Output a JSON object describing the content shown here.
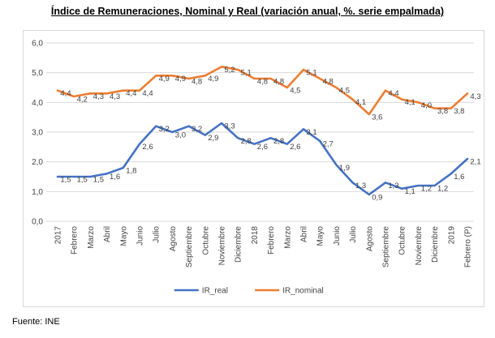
{
  "title": "Índice de Remuneraciones, Nominal y Real (variación anual, %. serie empalmada)",
  "source": "Fuente: INE",
  "colors": {
    "grid": "#D9D9D9",
    "border": "#D8D8D8",
    "axis_text": "#444444",
    "label_text": "#404040",
    "ir_real": "#4472C4",
    "ir_nominal": "#ED7D31"
  },
  "chart_data": {
    "type": "line",
    "title": "Índice de Remuneraciones, Nominal y Real (variación anual, %. serie empalmada)",
    "categories": [
      "2017",
      "Febrero",
      "Marzo",
      "Abril",
      "Mayo",
      "Junio",
      "Julio",
      "Agosto",
      "Septiembre",
      "Octubre",
      "Noviembre",
      "Diciembre",
      "2018",
      "Febrero",
      "Marzo",
      "Abril",
      "Mayo",
      "Junio",
      "Julio",
      "Agosto",
      "Septiembre",
      "Octubre",
      "Noviembre",
      "Diciembre",
      "2019",
      "Febrero (P)"
    ],
    "series": [
      {
        "name": "IR_real",
        "color": "#4472C4",
        "values": [
          1.5,
          1.5,
          1.5,
          1.6,
          1.8,
          2.6,
          3.2,
          3.0,
          3.2,
          2.9,
          3.3,
          2.8,
          2.6,
          2.8,
          2.6,
          3.1,
          2.7,
          1.9,
          1.3,
          0.9,
          1.3,
          1.1,
          1.2,
          1.2,
          1.6,
          2.1
        ]
      },
      {
        "name": "IR_nominal",
        "color": "#ED7D31",
        "values": [
          4.4,
          4.2,
          4.3,
          4.3,
          4.4,
          4.4,
          4.9,
          4.9,
          4.8,
          4.9,
          5.2,
          5.1,
          4.8,
          4.8,
          4.5,
          5.1,
          4.8,
          4.5,
          4.1,
          3.6,
          4.4,
          4.1,
          4.0,
          3.8,
          3.8,
          4.3
        ]
      }
    ],
    "ylim": [
      0,
      6
    ],
    "y_ticks": [
      "0,0",
      "1,0",
      "2,0",
      "3,0",
      "4,0",
      "5,0",
      "6,0"
    ],
    "grid": true,
    "data_labels": true,
    "decimal_separator": ",",
    "legend_position": "bottom",
    "xlabel": "",
    "ylabel": ""
  }
}
